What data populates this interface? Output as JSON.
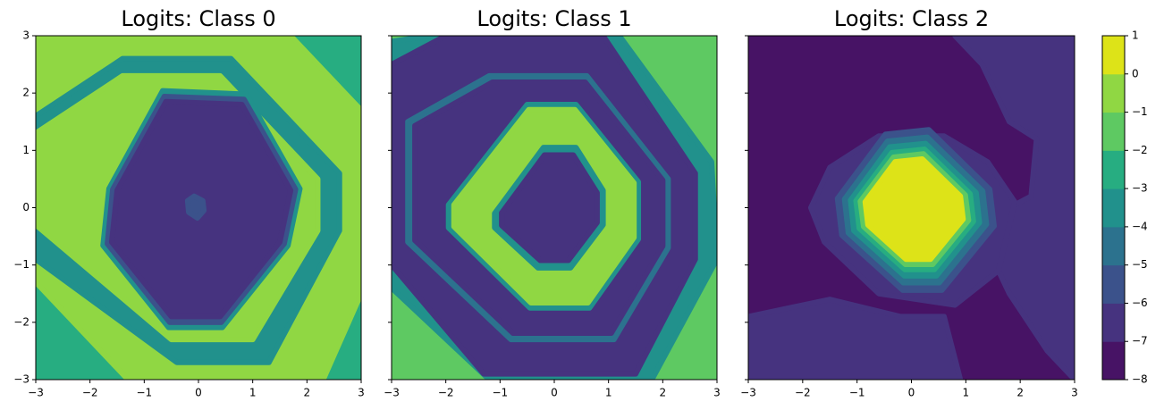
{
  "chart_data": [
    {
      "type": "contour",
      "title": "Logits: Class 0",
      "xlim": [
        -3,
        3
      ],
      "ylim": [
        -3,
        3
      ],
      "xticks": [
        {
          "value": -3,
          "label": "−3"
        },
        {
          "value": -2,
          "label": "−2"
        },
        {
          "value": -1,
          "label": "−1"
        },
        0,
        1,
        2,
        3
      ],
      "yticks": [
        {
          "value": -3,
          "label": "−3"
        },
        {
          "value": -2,
          "label": "−2"
        },
        {
          "value": -1,
          "label": "−1"
        },
        0,
        1,
        2,
        3
      ],
      "ytick_labels": true,
      "contours": [
        {
          "value": -2.5,
          "points": [
            [
              -3,
              3
            ],
            [
              3,
              3
            ],
            [
              3,
              -3
            ],
            [
              -3,
              -3
            ]
          ]
        },
        {
          "value": -0.5,
          "points": [
            [
              -3,
              3
            ],
            [
              1.7,
              3
            ],
            [
              3,
              1.7
            ],
            [
              3,
              -1.5
            ],
            [
              2.3,
              -3
            ],
            [
              -1.3,
              -3
            ],
            [
              -3,
              -1.3
            ]
          ]
        },
        {
          "value": -3.5,
          "points": [
            [
              -3,
              1.6
            ],
            [
              -1.4,
              2.6
            ],
            [
              0.6,
              2.6
            ],
            [
              2.6,
              0.6
            ],
            [
              2.6,
              -0.4
            ],
            [
              1.3,
              -2.7
            ],
            [
              -0.4,
              -2.7
            ],
            [
              -3,
              -0.9
            ]
          ]
        },
        {
          "value": -0.5,
          "points": [
            [
              -3,
              1.3
            ],
            [
              -1.4,
              2.3
            ],
            [
              0.4,
              2.3
            ],
            [
              2.2,
              0.5
            ],
            [
              2.2,
              -0.4
            ],
            [
              1.0,
              -2.3
            ],
            [
              -0.5,
              -2.3
            ],
            [
              -3,
              -0.3
            ]
          ]
        },
        {
          "value": -3.5,
          "points": [
            [
              -1.65,
              0.33
            ],
            [
              -0.66,
              2.04
            ],
            [
              0.88,
              1.98
            ],
            [
              1.87,
              0.33
            ],
            [
              1.65,
              -0.66
            ],
            [
              0.44,
              -2.09
            ],
            [
              -0.55,
              -2.09
            ],
            [
              -1.76,
              -0.66
            ]
          ]
        },
        {
          "value": -5.5,
          "points": [
            [
              -1.58,
              0.32
            ],
            [
              -0.63,
              1.94
            ],
            [
              0.84,
              1.89
            ],
            [
              1.79,
              0.32
            ],
            [
              1.58,
              -0.63
            ],
            [
              0.42,
              -2.0
            ],
            [
              -0.53,
              -2.0
            ],
            [
              -1.68,
              -0.63
            ]
          ]
        },
        {
          "value": -6.5,
          "points": [
            [
              -1.5,
              0.3
            ],
            [
              -0.6,
              1.85
            ],
            [
              0.8,
              1.8
            ],
            [
              1.7,
              0.3
            ],
            [
              1.5,
              -0.6
            ],
            [
              0.4,
              -1.9
            ],
            [
              -0.5,
              -1.9
            ],
            [
              -1.6,
              -0.6
            ]
          ]
        },
        {
          "value": -5.5,
          "points": [
            [
              -0.2,
              0.12
            ],
            [
              -0.08,
              0.2
            ],
            [
              0.08,
              0.12
            ],
            [
              0.1,
              -0.05
            ],
            [
              -0.02,
              -0.18
            ],
            [
              -0.18,
              -0.08
            ]
          ]
        }
      ]
    },
    {
      "type": "contour",
      "title": "Logits: Class 1",
      "xlim": [
        -3,
        3
      ],
      "ylim": [
        -3,
        3
      ],
      "xticks": [
        {
          "value": -3,
          "label": "−3"
        },
        {
          "value": -2,
          "label": "−2"
        },
        {
          "value": -1,
          "label": "−1"
        },
        0,
        1,
        2,
        3
      ],
      "yticks": [
        -3,
        -2,
        -1,
        0,
        1,
        2,
        3
      ],
      "ytick_labels": false,
      "contours": [
        {
          "value": -1.5,
          "points": [
            [
              -3,
              3
            ],
            [
              3,
              3
            ],
            [
              3,
              -3
            ],
            [
              -3,
              -3
            ]
          ]
        },
        {
          "value": -3.5,
          "points": [
            [
              -3,
              2.9
            ],
            [
              -2.3,
              3
            ],
            [
              1.2,
              3
            ],
            [
              2.9,
              0.8
            ],
            [
              3,
              -0.9
            ],
            [
              1.8,
              -3
            ],
            [
              -1.2,
              -3
            ],
            [
              -3,
              -1.4
            ]
          ]
        },
        {
          "value": -6.5,
          "points": [
            [
              -3,
              2.5
            ],
            [
              -2,
              3
            ],
            [
              0.9,
              3
            ],
            [
              2.6,
              0.6
            ],
            [
              2.6,
              -0.9
            ],
            [
              1.5,
              -2.9
            ],
            [
              -1.3,
              -2.9
            ],
            [
              -3,
              -1.0
            ]
          ]
        },
        {
          "value": -4.5,
          "points": [
            [
              -2.7,
              1.5
            ],
            [
              -1.2,
              2.3
            ],
            [
              0.6,
              2.3
            ],
            [
              2.1,
              0.5
            ],
            [
              2.1,
              -0.7
            ],
            [
              1.1,
              -2.3
            ],
            [
              -0.8,
              -2.3
            ],
            [
              -2.7,
              -0.6
            ]
          ]
        },
        {
          "value": -6.5,
          "points": [
            [
              -2.57,
              1.43
            ],
            [
              -1.14,
              2.19
            ],
            [
              0.57,
              2.19
            ],
            [
              2.0,
              0.48
            ],
            [
              2.0,
              -0.67
            ],
            [
              1.05,
              -2.19
            ],
            [
              -0.76,
              -2.19
            ],
            [
              -2.57,
              -0.57
            ]
          ]
        },
        {
          "value": -3.5,
          "points": [
            [
              -1.95,
              0.05
            ],
            [
              -0.5,
              1.8
            ],
            [
              0.4,
              1.8
            ],
            [
              1.55,
              0.45
            ],
            [
              1.55,
              -0.55
            ],
            [
              0.65,
              -1.75
            ],
            [
              -0.45,
              -1.75
            ],
            [
              -1.95,
              -0.35
            ]
          ]
        },
        {
          "value": -0.5,
          "points": [
            [
              -1.85,
              0.05
            ],
            [
              -0.47,
              1.71
            ],
            [
              0.38,
              1.71
            ],
            [
              1.47,
              0.43
            ],
            [
              1.47,
              -0.52
            ],
            [
              0.62,
              -1.66
            ],
            [
              -0.43,
              -1.66
            ],
            [
              -1.85,
              -0.33
            ]
          ]
        },
        {
          "value": -3.5,
          "points": [
            [
              -1.1,
              -0.1
            ],
            [
              -0.2,
              1.05
            ],
            [
              0.4,
              1.05
            ],
            [
              0.9,
              0.3
            ],
            [
              0.9,
              -0.3
            ],
            [
              0.3,
              -1.05
            ],
            [
              -0.3,
              -1.05
            ],
            [
              -1.1,
              -0.35
            ]
          ]
        },
        {
          "value": -6.5,
          "points": [
            [
              -0.97,
              -0.09
            ],
            [
              -0.18,
              0.92
            ],
            [
              0.35,
              0.92
            ],
            [
              0.79,
              0.26
            ],
            [
              0.79,
              -0.26
            ],
            [
              0.26,
              -0.92
            ],
            [
              -0.26,
              -0.92
            ],
            [
              -0.97,
              -0.31
            ]
          ]
        }
      ]
    },
    {
      "type": "contour",
      "title": "Logits: Class 2",
      "xlim": [
        -3,
        3
      ],
      "ylim": [
        -3,
        3
      ],
      "xticks": [
        {
          "value": -3,
          "label": "−3"
        },
        {
          "value": -2,
          "label": "−2"
        },
        {
          "value": -1,
          "label": "−1"
        },
        0,
        1,
        2,
        3
      ],
      "yticks": [
        -3,
        -2,
        -1,
        0,
        1,
        2,
        3
      ],
      "ytick_labels": false,
      "contours": [
        {
          "value": -7.5,
          "points": [
            [
              -3,
              3
            ],
            [
              3,
              3
            ],
            [
              3,
              -3
            ],
            [
              -3,
              -3
            ]
          ]
        },
        {
          "value": -6.5,
          "points": [
            [
              0.8,
              3
            ],
            [
              3,
              3
            ],
            [
              3,
              -3
            ],
            [
              2.5,
              -2.5
            ],
            [
              1.8,
              -1.5
            ],
            [
              1.2,
              -0.3
            ],
            [
              2.2,
              0.2
            ],
            [
              2.3,
              1.2
            ],
            [
              1.8,
              1.5
            ],
            [
              1.3,
              2.5
            ]
          ]
        },
        {
          "value": -6.5,
          "points": [
            [
              -3,
              -3
            ],
            [
              -3,
              -1.9
            ],
            [
              -1.5,
              -1.6
            ],
            [
              -0.2,
              -1.9
            ],
            [
              0.6,
              -1.9
            ],
            [
              0.9,
              -3
            ]
          ]
        },
        {
          "value": -6.5,
          "points": [
            [
              -1.85,
              0.0
            ],
            [
              -1.5,
              0.7
            ],
            [
              -0.6,
              1.25
            ],
            [
              0.6,
              1.25
            ],
            [
              1.4,
              0.8
            ],
            [
              1.9,
              0.1
            ],
            [
              1.6,
              -1.1
            ],
            [
              0.8,
              -1.7
            ],
            [
              -0.6,
              -1.5
            ],
            [
              -1.6,
              -0.6
            ]
          ]
        },
        {
          "value": -5.5,
          "points": [
            [
              -1.36,
              0.16
            ],
            [
              -0.48,
              1.28
            ],
            [
              0.32,
              1.36
            ],
            [
              1.44,
              0.32
            ],
            [
              1.52,
              -0.32
            ],
            [
              0.56,
              -1.44
            ],
            [
              -0.16,
              -1.44
            ],
            [
              -1.28,
              -0.48
            ]
          ]
        },
        {
          "value": -4.5,
          "points": [
            [
              -1.23,
              0.15
            ],
            [
              -0.44,
              1.16
            ],
            [
              0.29,
              1.23
            ],
            [
              1.31,
              0.29
            ],
            [
              1.38,
              -0.29
            ],
            [
              0.51,
              -1.31
            ],
            [
              -0.15,
              -1.31
            ],
            [
              -1.16,
              -0.44
            ]
          ]
        },
        {
          "value": -3.5,
          "points": [
            [
              -1.12,
              0.13
            ],
            [
              -0.4,
              1.06
            ],
            [
              0.26,
              1.12
            ],
            [
              1.19,
              0.26
            ],
            [
              1.25,
              -0.26
            ],
            [
              0.46,
              -1.19
            ],
            [
              -0.13,
              -1.19
            ],
            [
              -1.06,
              -0.4
            ]
          ]
        },
        {
          "value": -2.5,
          "points": [
            [
              -1.02,
              0.12
            ],
            [
              -0.36,
              0.96
            ],
            [
              0.24,
              1.02
            ],
            [
              1.08,
              0.24
            ],
            [
              1.14,
              -0.24
            ],
            [
              0.42,
              -1.08
            ],
            [
              -0.12,
              -1.08
            ],
            [
              -0.96,
              -0.36
            ]
          ]
        },
        {
          "value": -1.5,
          "points": [
            [
              -0.94,
              0.11
            ],
            [
              -0.33,
              0.88
            ],
            [
              0.22,
              0.94
            ],
            [
              0.99,
              0.22
            ],
            [
              1.05,
              -0.22
            ],
            [
              0.39,
              -0.99
            ],
            [
              -0.11,
              -0.99
            ],
            [
              -0.88,
              -0.33
            ]
          ]
        },
        {
          "value": 0.5,
          "points": [
            [
              -0.85,
              0.1
            ],
            [
              -0.3,
              0.8
            ],
            [
              0.2,
              0.85
            ],
            [
              0.9,
              0.2
            ],
            [
              0.95,
              -0.2
            ],
            [
              0.35,
              -0.9
            ],
            [
              -0.1,
              -0.9
            ],
            [
              -0.8,
              -0.3
            ]
          ]
        }
      ]
    },
    {
      "type": "colorbar",
      "ylim": [
        -8,
        1
      ],
      "yticks": [
        {
          "value": -8,
          "label": "−8"
        },
        {
          "value": -7,
          "label": "−7"
        },
        {
          "value": -6,
          "label": "−6"
        },
        {
          "value": -5,
          "label": "−5"
        },
        {
          "value": -4,
          "label": "−4"
        },
        {
          "value": -3,
          "label": "−3"
        },
        {
          "value": -2,
          "label": "−2"
        },
        {
          "value": -1,
          "label": "−1"
        },
        0,
        1
      ],
      "colors": [
        "#471365",
        "#46337f",
        "#3b528b",
        "#2c728e",
        "#21918c",
        "#27ad81",
        "#5ec962",
        "#90d743",
        "#dde318"
      ]
    }
  ]
}
